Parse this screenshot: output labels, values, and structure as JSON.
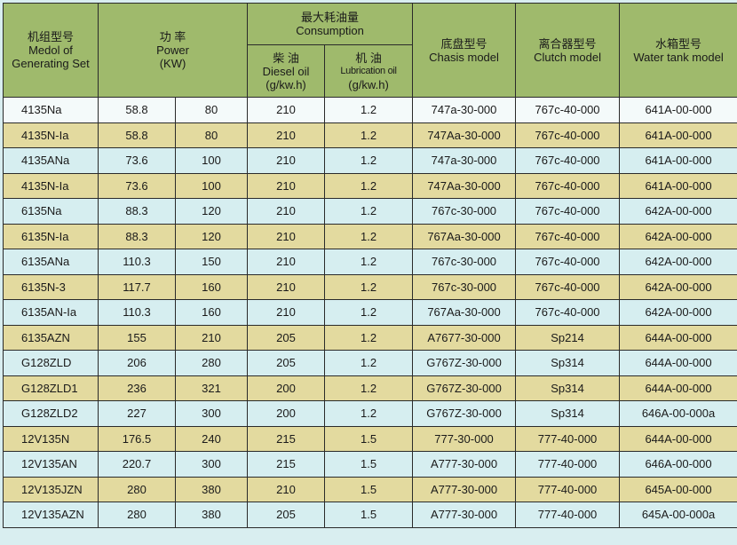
{
  "colors": {
    "header": "#9fba6c",
    "row_yellow": "#e3da9f",
    "row_blue": "#d6eef0",
    "row_first": "#f4fafa"
  },
  "headers": {
    "model": {
      "cn": "机组型号",
      "en": "Medol of Generating Set"
    },
    "power": {
      "cn": "功 率",
      "en": "Power",
      "unit": "(KW)"
    },
    "consumption": {
      "cn": "最大耗油量",
      "en": "Consumption"
    },
    "diesel": {
      "cn": "柴 油",
      "en": "Diesel oil",
      "unit": "(g/kw.h)"
    },
    "lube": {
      "cn": "机 油",
      "en": "Lubrication oil",
      "unit": "(g/kw.h)"
    },
    "chasis": {
      "cn": "底盘型号",
      "en": "Chasis model"
    },
    "clutch": {
      "cn": "离合器型号",
      "en": "Clutch model"
    },
    "water": {
      "cn": "水箱型号",
      "en": "Water tank model"
    }
  },
  "rows": [
    [
      "4135Na",
      "58.8",
      "80",
      "210",
      "1.2",
      "747a-30-000",
      "767c-40-000",
      "641A-00-000"
    ],
    [
      "4135N-Ia",
      "58.8",
      "80",
      "210",
      "1.2",
      "747Aa-30-000",
      "767c-40-000",
      "641A-00-000"
    ],
    [
      "4135ANa",
      "73.6",
      "100",
      "210",
      "1.2",
      "747a-30-000",
      "767c-40-000",
      "641A-00-000"
    ],
    [
      "4135N-Ia",
      "73.6",
      "100",
      "210",
      "1.2",
      "747Aa-30-000",
      "767c-40-000",
      "641A-00-000"
    ],
    [
      "6135Na",
      "88.3",
      "120",
      "210",
      "1.2",
      "767c-30-000",
      "767c-40-000",
      "642A-00-000"
    ],
    [
      "6135N-Ia",
      "88.3",
      "120",
      "210",
      "1.2",
      "767Aa-30-000",
      "767c-40-000",
      "642A-00-000"
    ],
    [
      "6135ANa",
      "110.3",
      "150",
      "210",
      "1.2",
      "767c-30-000",
      "767c-40-000",
      "642A-00-000"
    ],
    [
      "6135N-3",
      "117.7",
      "160",
      "210",
      "1.2",
      "767c-30-000",
      "767c-40-000",
      "642A-00-000"
    ],
    [
      "6135AN-Ia",
      "110.3",
      "160",
      "210",
      "1.2",
      "767Aa-30-000",
      "767c-40-000",
      "642A-00-000"
    ],
    [
      "6135AZN",
      "155",
      "210",
      "205",
      "1.2",
      "A7677-30-000",
      "Sp214",
      "644A-00-000"
    ],
    [
      "G128ZLD",
      "206",
      "280",
      "205",
      "1.2",
      "G767Z-30-000",
      "Sp314",
      "644A-00-000"
    ],
    [
      "G128ZLD1",
      "236",
      "321",
      "200",
      "1.2",
      "G767Z-30-000",
      "Sp314",
      "644A-00-000"
    ],
    [
      "G128ZLD2",
      "227",
      "300",
      "200",
      "1.2",
      "G767Z-30-000",
      "Sp314",
      "646A-00-000a"
    ],
    [
      "12V135N",
      "176.5",
      "240",
      "215",
      "1.5",
      "777-30-000",
      "777-40-000",
      "644A-00-000"
    ],
    [
      "12V135AN",
      "220.7",
      "300",
      "215",
      "1.5",
      "A777-30-000",
      "777-40-000",
      "646A-00-000"
    ],
    [
      "12V135JZN",
      "280",
      "380",
      "210",
      "1.5",
      "A777-30-000",
      "777-40-000",
      "645A-00-000"
    ],
    [
      "12V135AZN",
      "280",
      "380",
      "205",
      "1.5",
      "A777-30-000",
      "777-40-000",
      "645A-00-000a"
    ]
  ]
}
